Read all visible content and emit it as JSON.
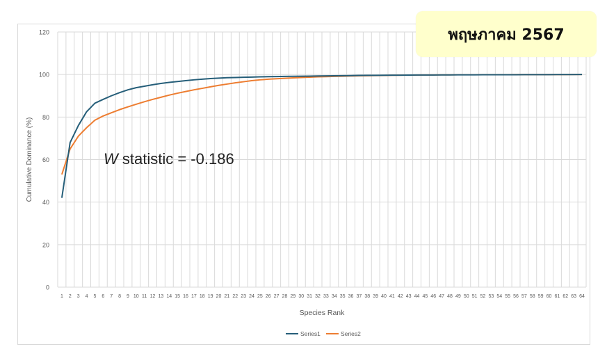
{
  "date_badge": "พฤษภาคม 2567",
  "annotation": {
    "w_symbol": "W",
    "w_rest": " statistic = -0.186"
  },
  "colors": {
    "series1": "#255e79",
    "series2": "#ed7d31",
    "grid": "#d9d9d9",
    "badge_bg": "#ffffcc"
  },
  "chart_data": {
    "type": "line",
    "title": "",
    "xlabel": "Species Rank",
    "ylabel": "Cumulative Dominance (%)",
    "ylim": [
      0,
      120
    ],
    "yticks": [
      0,
      20,
      40,
      60,
      80,
      100,
      120
    ],
    "grid": true,
    "legend_position": "bottom",
    "x": [
      1,
      2,
      3,
      4,
      5,
      6,
      7,
      8,
      9,
      10,
      11,
      12,
      13,
      14,
      15,
      16,
      17,
      18,
      19,
      20,
      21,
      22,
      23,
      24,
      25,
      26,
      27,
      28,
      29,
      30,
      31,
      32,
      33,
      34,
      35,
      36,
      37,
      38,
      39,
      40,
      41,
      42,
      43,
      44,
      45,
      46,
      47,
      48,
      49,
      50,
      51,
      52,
      53,
      54,
      55,
      56,
      57,
      58,
      59,
      60,
      61,
      62,
      63,
      64
    ],
    "series": [
      {
        "name": "Series1",
        "values": [
          42,
          68,
          76,
          82.5,
          86.5,
          88.3,
          90,
          91.5,
          92.8,
          93.8,
          94.5,
          95.2,
          95.8,
          96.3,
          96.7,
          97.1,
          97.5,
          97.8,
          98.1,
          98.3,
          98.5,
          98.6,
          98.7,
          98.8,
          98.9,
          99.0,
          99.05,
          99.1,
          99.15,
          99.2,
          99.25,
          99.3,
          99.35,
          99.4,
          99.45,
          99.5,
          99.55,
          99.6,
          99.62,
          99.65,
          99.68,
          99.7,
          99.72,
          99.75,
          99.77,
          99.78,
          99.8,
          99.82,
          99.84,
          99.85,
          99.86,
          99.87,
          99.88,
          99.89,
          99.9,
          99.91,
          99.92,
          99.93,
          99.94,
          99.95,
          99.96,
          99.97,
          99.98,
          100
        ]
      },
      {
        "name": "Series2",
        "values": [
          53,
          65,
          71,
          75,
          78.5,
          80.5,
          82,
          83.5,
          84.8,
          86,
          87.2,
          88.3,
          89.3,
          90.3,
          91.2,
          92.0,
          92.8,
          93.5,
          94.2,
          94.9,
          95.5,
          96.1,
          96.6,
          97.1,
          97.5,
          97.8,
          98.0,
          98.2,
          98.4,
          98.6,
          98.75,
          98.9,
          99.0,
          99.1,
          99.2,
          99.3,
          99.38,
          99.45,
          99.52,
          99.58,
          99.63,
          99.68,
          99.72,
          99.76,
          99.79,
          99.82,
          99.84,
          99.86,
          99.88,
          99.9,
          99.91,
          99.92,
          99.93,
          99.94,
          99.95,
          99.96,
          99.97,
          99.97,
          99.98,
          99.98,
          99.99,
          99.99,
          100,
          100
        ]
      }
    ]
  }
}
